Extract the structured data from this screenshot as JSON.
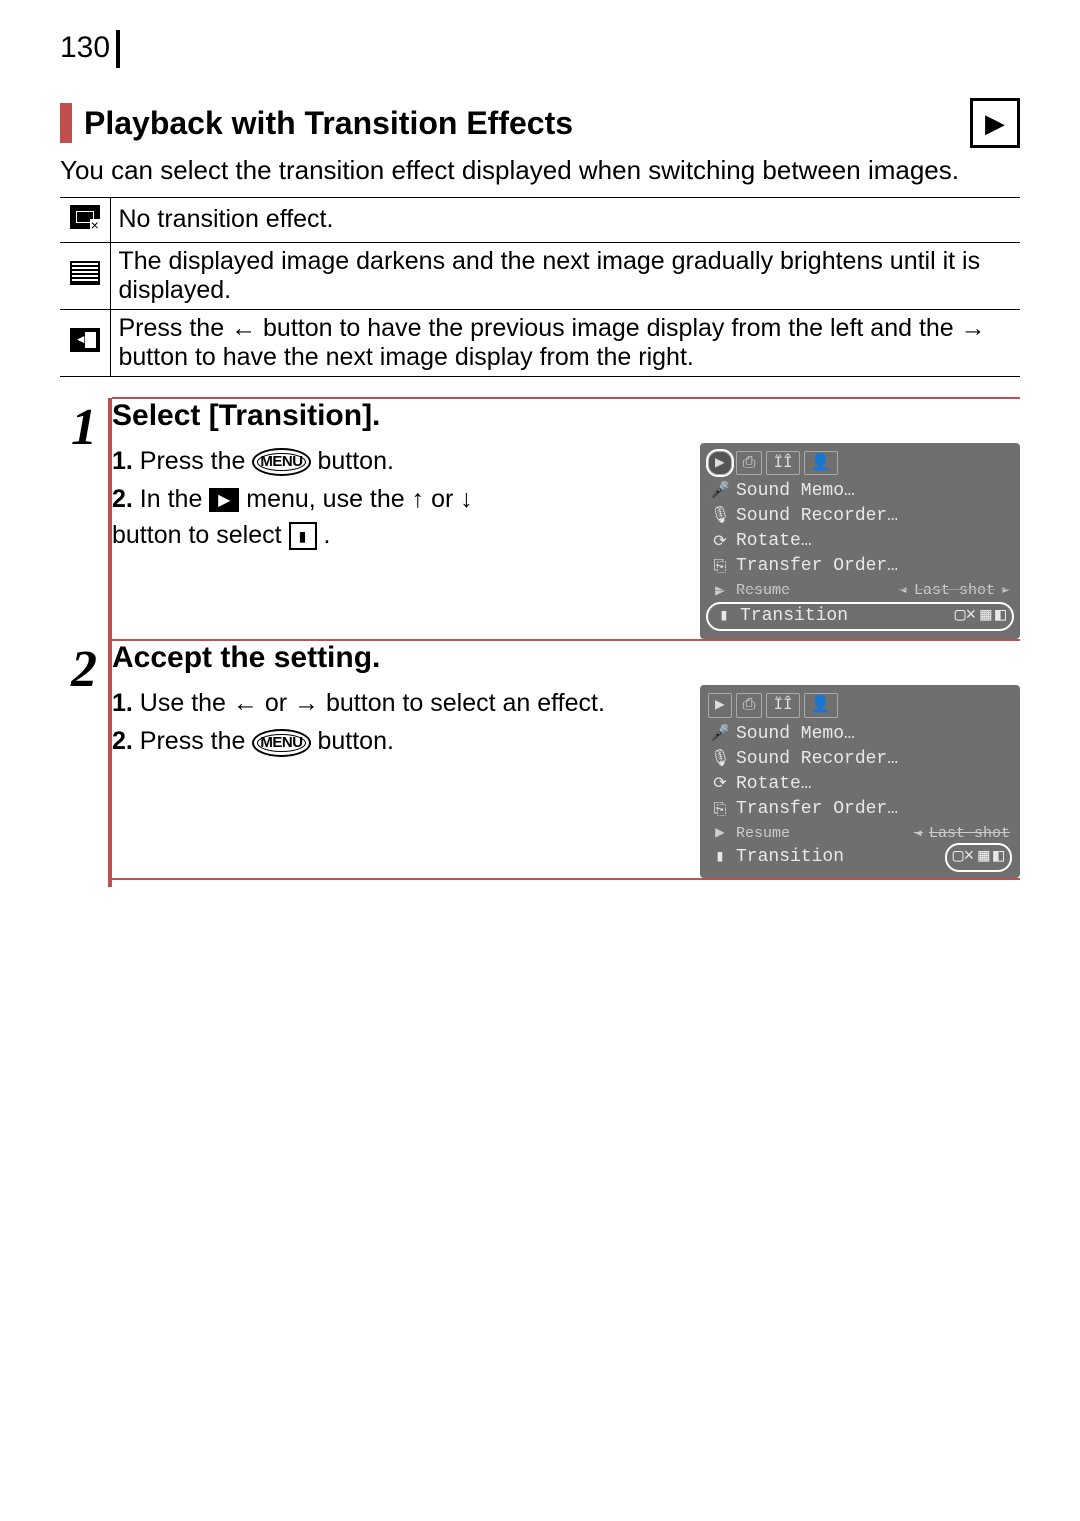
{
  "page_number": "130",
  "section_title": "Playback with Transition Effects",
  "mode_icon": "▶",
  "intro": "You can select the transition effect displayed when switching between images.",
  "effects": [
    {
      "icon_type": "none",
      "desc": "No transition effect."
    },
    {
      "icon_type": "fade",
      "desc": "The displayed image darkens and the next image gradually brightens until it is displayed."
    },
    {
      "icon_type": "slide",
      "desc_pre": "Press the ",
      "arrow1": "←",
      "desc_mid": " button to have the previous image display from the left and the ",
      "arrow2": "→",
      "desc_post": " button to have the next image display from the right."
    }
  ],
  "steps": [
    {
      "num": "1",
      "title": "Select [Transition].",
      "lines": {
        "l1_pre": "Press the ",
        "l1_btn": "MENU",
        "l1_post": " button.",
        "l2_pre": "In the ",
        "l2_play": "▶",
        "l2_mid": " menu, use the ",
        "l2_up": "↑",
        "l2_or": " or ",
        "l2_dn": "↓",
        "l2_post": "button to select ",
        "l2_sel": "▮",
        "l2_end": "."
      },
      "lcd": {
        "tabs": [
          "▶",
          "⎙",
          "ÏÎ",
          "👤"
        ],
        "rows": [
          {
            "ico": "🎤",
            "label": "Sound Memo…"
          },
          {
            "ico": "🎙",
            "label": "Sound Recorder…"
          },
          {
            "ico": "⟳",
            "label": "Rotate…"
          },
          {
            "ico": "⎘",
            "label": "Transfer Order…"
          },
          {
            "ico": "▶",
            "label": "Resume",
            "right": "Last shot",
            "right_arrow": "▸",
            "left_arrow": "◂",
            "struck": true
          },
          {
            "ico": "▮",
            "label": "Transition",
            "opts": [
              "▢×",
              "▦",
              "◧"
            ],
            "highlight": "row"
          }
        ]
      }
    },
    {
      "num": "2",
      "title": "Accept the setting.",
      "lines": {
        "l1_pre": "Use the ",
        "l1_left": "←",
        "l1_or": " or ",
        "l1_right": "→",
        "l1_post": " button to select an effect.",
        "l2_pre": "Press the ",
        "l2_btn": "MENU",
        "l2_post": " button."
      },
      "lcd": {
        "tabs": [
          "▶",
          "⎙",
          "ÏÎ",
          "👤"
        ],
        "rows": [
          {
            "ico": "🎤",
            "label": "Sound Memo…"
          },
          {
            "ico": "🎙",
            "label": "Sound Recorder…"
          },
          {
            "ico": "⟳",
            "label": "Rotate…"
          },
          {
            "ico": "⎘",
            "label": "Transfer Order…"
          },
          {
            "ico": "▶",
            "label": "Resume",
            "right": "Last shot",
            "right_arrow": "",
            "left_arrow": "◂",
            "struck": true
          },
          {
            "ico": "▮",
            "label": "Transition",
            "opts": [
              "▢×",
              "▦",
              "◧"
            ],
            "highlight": "opts"
          }
        ]
      }
    }
  ]
}
